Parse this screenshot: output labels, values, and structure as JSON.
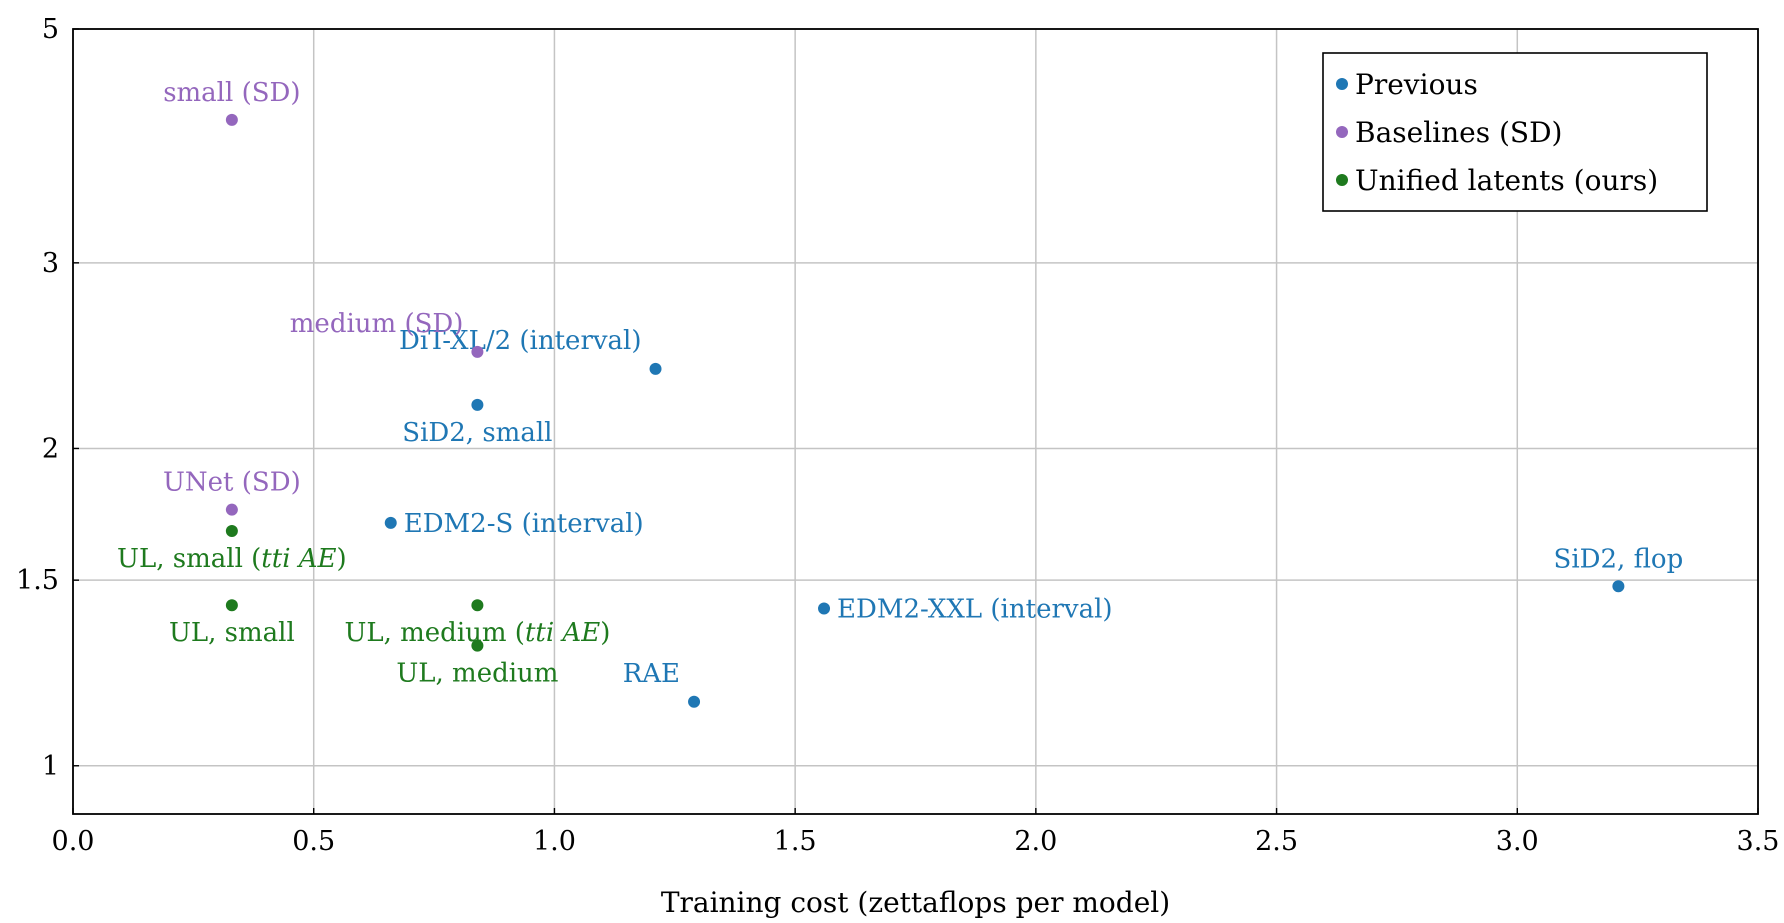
{
  "chart_data": {
    "type": "scatter",
    "title": "",
    "xlabel": "Training cost (zettaflops per model)",
    "ylabel": "",
    "xlim": [
      0,
      3.5
    ],
    "ylim": [
      0.9,
      5
    ],
    "yscale": "log",
    "xticks": [
      0.0,
      0.5,
      1.0,
      1.5,
      2.0,
      2.5,
      3.0,
      3.5
    ],
    "xtick_labels": [
      "0.0",
      "0.5",
      "1.0",
      "1.5",
      "2.0",
      "2.5",
      "3.0",
      "3.5"
    ],
    "yticks": [
      1,
      1.5,
      2,
      3,
      5
    ],
    "ytick_labels": [
      "1",
      "1.5",
      "2",
      "3",
      "5"
    ],
    "grid": true,
    "legend_position": "top-right",
    "series": [
      {
        "name": "Previous",
        "color": "#1f77b4",
        "points": [
          {
            "x": 1.21,
            "y": 2.38,
            "label": "DiT-XL/2 (interval)",
            "anchor": "above-left"
          },
          {
            "x": 0.84,
            "y": 2.2,
            "label": "SiD2, small",
            "anchor": "below"
          },
          {
            "x": 0.66,
            "y": 1.7,
            "label": "EDM2-S (interval)",
            "anchor": "right"
          },
          {
            "x": 1.56,
            "y": 1.41,
            "label": "EDM2-XXL (interval)",
            "anchor": "right"
          },
          {
            "x": 1.29,
            "y": 1.15,
            "label": "RAE",
            "anchor": "above-left"
          },
          {
            "x": 3.21,
            "y": 1.48,
            "label": "SiD2, flop",
            "anchor": "above"
          }
        ]
      },
      {
        "name": "Baselines (SD)",
        "color": "#9467bd",
        "points": [
          {
            "x": 0.33,
            "y": 4.1,
            "label": "small (SD)",
            "anchor": "above"
          },
          {
            "x": 0.84,
            "y": 2.47,
            "label": "medium (SD)",
            "anchor": "above-left"
          },
          {
            "x": 0.33,
            "y": 1.75,
            "label": "UNet (SD)",
            "anchor": "above"
          }
        ]
      },
      {
        "name": "Unified latents (ours)",
        "color": "#1e7a1e",
        "points": [
          {
            "x": 0.33,
            "y": 1.67,
            "label": "UL, small (",
            "label_italic": "tti AE",
            "label_suffix": ")",
            "anchor": "below"
          },
          {
            "x": 0.33,
            "y": 1.42,
            "label": "UL, small",
            "anchor": "below"
          },
          {
            "x": 0.84,
            "y": 1.42,
            "label": "UL, medium (",
            "label_italic": "tti AE",
            "label_suffix": ")",
            "anchor": "below"
          },
          {
            "x": 0.84,
            "y": 1.3,
            "label": "UL, medium",
            "anchor": "below"
          }
        ]
      }
    ]
  }
}
